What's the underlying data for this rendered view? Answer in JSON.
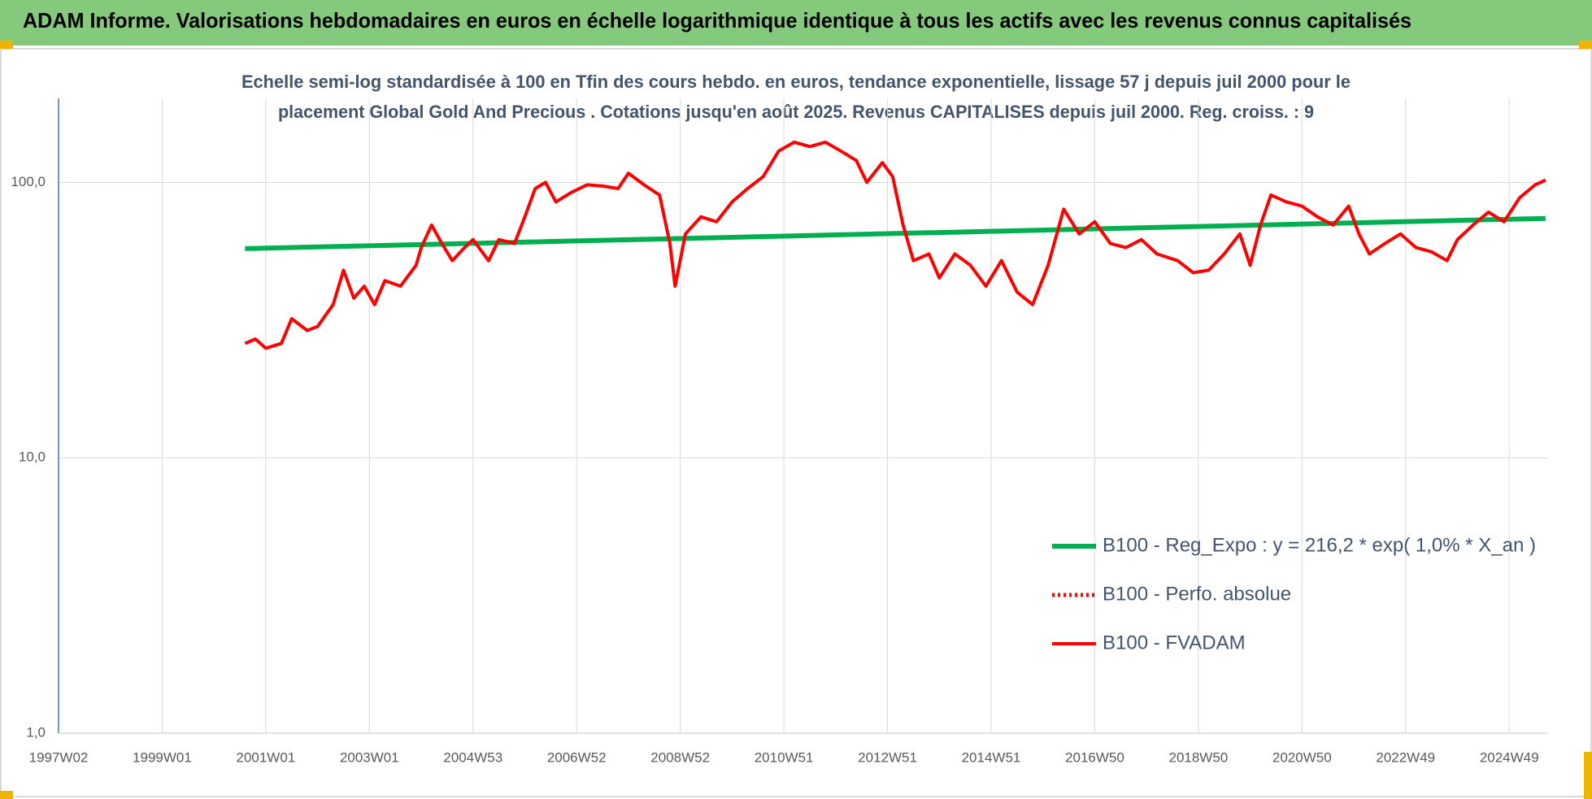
{
  "chart_data": {
    "type": "line",
    "header": "ADAM Informe. Valorisations hebdomadaires en euros en échelle logarithmique identique à tous les actifs avec les revenus connus capitalisés",
    "title": [
      "Echelle semi-log standardisée à 100 en Tfin des cours hebdo. en euros, tendance exponentielle, lissage 57 j depuis juil 2000 pour le",
      "placement Global Gold And Precious . Cotations jusqu'en août 2025. Revenus CAPITALISES depuis juil 2000. Reg. croiss. : 9"
    ],
    "log_y": true,
    "grid": true,
    "legend": "lower right",
    "xlim": [
      1997.0,
      2025.75
    ],
    "ylim": [
      1,
      202
    ],
    "xticks": [
      {
        "value": 1997.0,
        "label": "1997W02"
      },
      {
        "value": 1999.0,
        "label": "1999W01"
      },
      {
        "value": 2001.0,
        "label": "2001W01"
      },
      {
        "value": 2003.0,
        "label": "2003W01"
      },
      {
        "value": 2005.0,
        "label": "2004W53"
      },
      {
        "value": 2007.0,
        "label": "2006W52"
      },
      {
        "value": 2009.0,
        "label": "2008W52"
      },
      {
        "value": 2011.0,
        "label": "2010W51"
      },
      {
        "value": 2013.0,
        "label": "2012W51"
      },
      {
        "value": 2015.0,
        "label": "2014W51"
      },
      {
        "value": 2017.0,
        "label": "2016W50"
      },
      {
        "value": 2019.0,
        "label": "2018W50"
      },
      {
        "value": 2021.0,
        "label": "2020W50"
      },
      {
        "value": 2023.0,
        "label": "2022W49"
      },
      {
        "value": 2025.0,
        "label": "2024W49"
      }
    ],
    "yticks": [
      {
        "value": 1,
        "label": "1,0"
      },
      {
        "value": 10,
        "label": "10,0"
      },
      {
        "value": 100,
        "label": "100,0"
      }
    ],
    "series": [
      {
        "name": "B100 - Reg_Expo : y = 216,2 * exp( 1,0% *  X_an )",
        "color": "#00b050",
        "style": "solid",
        "width": 6,
        "x": [
          2000.6,
          2025.7
        ],
        "values": [
          57.5,
          74
        ]
      },
      {
        "name": "B100 - Perfo. absolue",
        "color": "#ff0000",
        "style": "dotted",
        "width": 4
      },
      {
        "name": "B100 - FVADAM",
        "color": "#ff0000",
        "style": "solid",
        "width": 4,
        "x": [
          2000.6,
          2000.8,
          2001.0,
          2001.3,
          2001.5,
          2001.8,
          2002.0,
          2002.3,
          2002.5,
          2002.7,
          2002.9,
          2003.1,
          2003.3,
          2003.6,
          2003.9,
          2004.0,
          2004.2,
          2004.4,
          2004.6,
          2004.8,
          2005.0,
          2005.3,
          2005.5,
          2005.8,
          2006.0,
          2006.2,
          2006.4,
          2006.6,
          2006.9,
          2007.2,
          2007.5,
          2007.8,
          2008.0,
          2008.3,
          2008.6,
          2008.8,
          2008.9,
          2009.1,
          2009.4,
          2009.7,
          2010.0,
          2010.3,
          2010.6,
          2010.9,
          2011.2,
          2011.5,
          2011.8,
          2012.1,
          2012.4,
          2012.6,
          2012.9,
          2013.1,
          2013.3,
          2013.5,
          2013.8,
          2014.0,
          2014.3,
          2014.6,
          2014.9,
          2015.2,
          2015.5,
          2015.8,
          2016.1,
          2016.4,
          2016.7,
          2017.0,
          2017.3,
          2017.6,
          2017.9,
          2018.2,
          2018.6,
          2018.9,
          2019.2,
          2019.5,
          2019.8,
          2020.0,
          2020.2,
          2020.4,
          2020.7,
          2021.0,
          2021.3,
          2021.6,
          2021.9,
          2022.1,
          2022.3,
          2022.6,
          2022.9,
          2023.2,
          2023.5,
          2023.8,
          2024.0,
          2024.3,
          2024.6,
          2024.9,
          2025.2,
          2025.5,
          2025.7
        ],
        "values": [
          26,
          27,
          25,
          26,
          32,
          29,
          30,
          36,
          48,
          38,
          42,
          36,
          44,
          42,
          50,
          58,
          70,
          60,
          52,
          57,
          62,
          52,
          62,
          60,
          75,
          95,
          100,
          85,
          92,
          98,
          97,
          95,
          108,
          98,
          90,
          60,
          42,
          65,
          75,
          72,
          85,
          95,
          105,
          130,
          140,
          135,
          140,
          130,
          120,
          100,
          118,
          105,
          70,
          52,
          55,
          45,
          55,
          50,
          42,
          52,
          40,
          36,
          50,
          80,
          65,
          72,
          60,
          58,
          62,
          55,
          52,
          47,
          48,
          55,
          65,
          50,
          70,
          90,
          85,
          82,
          75,
          70,
          82,
          65,
          55,
          60,
          65,
          58,
          56,
          52,
          62,
          70,
          78,
          72,
          88,
          98,
          102
        ]
      }
    ]
  }
}
